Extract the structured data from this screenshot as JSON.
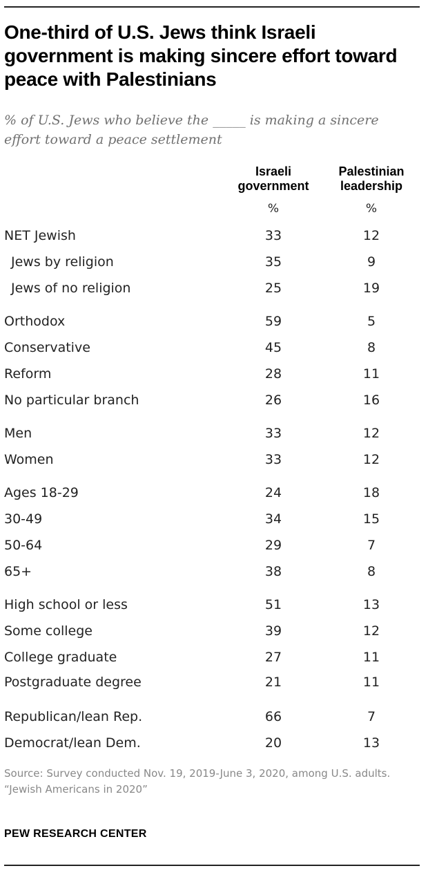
{
  "chart_data": {
    "type": "table",
    "title": "One-third of U.S. Jews think Israeli government is making sincere effort toward peace with Palestinians",
    "subtitle": "% of U.S. Jews who believe the _____ is making a sincere effort toward a peace settlement",
    "columns": [
      {
        "label": "Israeli government",
        "unit": "%"
      },
      {
        "label": "Palestinian leadership",
        "unit": "%"
      }
    ],
    "rows": [
      {
        "label": "NET Jewish",
        "values": [
          33,
          12
        ],
        "indent": false
      },
      {
        "label": "Jews by religion",
        "values": [
          35,
          9
        ],
        "indent": true
      },
      {
        "label": "Jews of no religion",
        "values": [
          25,
          19
        ],
        "indent": true
      },
      {
        "label": "Orthodox",
        "values": [
          59,
          5
        ],
        "indent": false
      },
      {
        "label": "Conservative",
        "values": [
          45,
          8
        ],
        "indent": false
      },
      {
        "label": "Reform",
        "values": [
          28,
          11
        ],
        "indent": false
      },
      {
        "label": "No particular branch",
        "values": [
          26,
          16
        ],
        "indent": false
      },
      {
        "label": "Men",
        "values": [
          33,
          12
        ],
        "indent": false
      },
      {
        "label": "Women",
        "values": [
          33,
          12
        ],
        "indent": false
      },
      {
        "label": "Ages 18-29",
        "values": [
          24,
          18
        ],
        "indent": false
      },
      {
        "label": "30-49",
        "values": [
          34,
          15
        ],
        "indent": false
      },
      {
        "label": "50-64",
        "values": [
          29,
          7
        ],
        "indent": false
      },
      {
        "label": "65+",
        "values": [
          38,
          8
        ],
        "indent": false
      },
      {
        "label": "High school or less",
        "values": [
          51,
          13
        ],
        "indent": false
      },
      {
        "label": "Some college",
        "values": [
          39,
          12
        ],
        "indent": false
      },
      {
        "label": "College graduate",
        "values": [
          27,
          11
        ],
        "indent": false
      },
      {
        "label": "Postgraduate degree",
        "values": [
          21,
          11
        ],
        "indent": false
      },
      {
        "label": "Republican/lean Rep.",
        "values": [
          66,
          7
        ],
        "indent": false
      },
      {
        "label": "Democrat/lean Dem.",
        "values": [
          20,
          13
        ],
        "indent": false
      }
    ]
  },
  "footer": {
    "source": "Source: Survey conducted Nov. 19, 2019-June 3, 2020, among U.S. adults.",
    "report": "“Jewish Americans in 2020”",
    "brand": "PEW RESEARCH CENTER"
  }
}
